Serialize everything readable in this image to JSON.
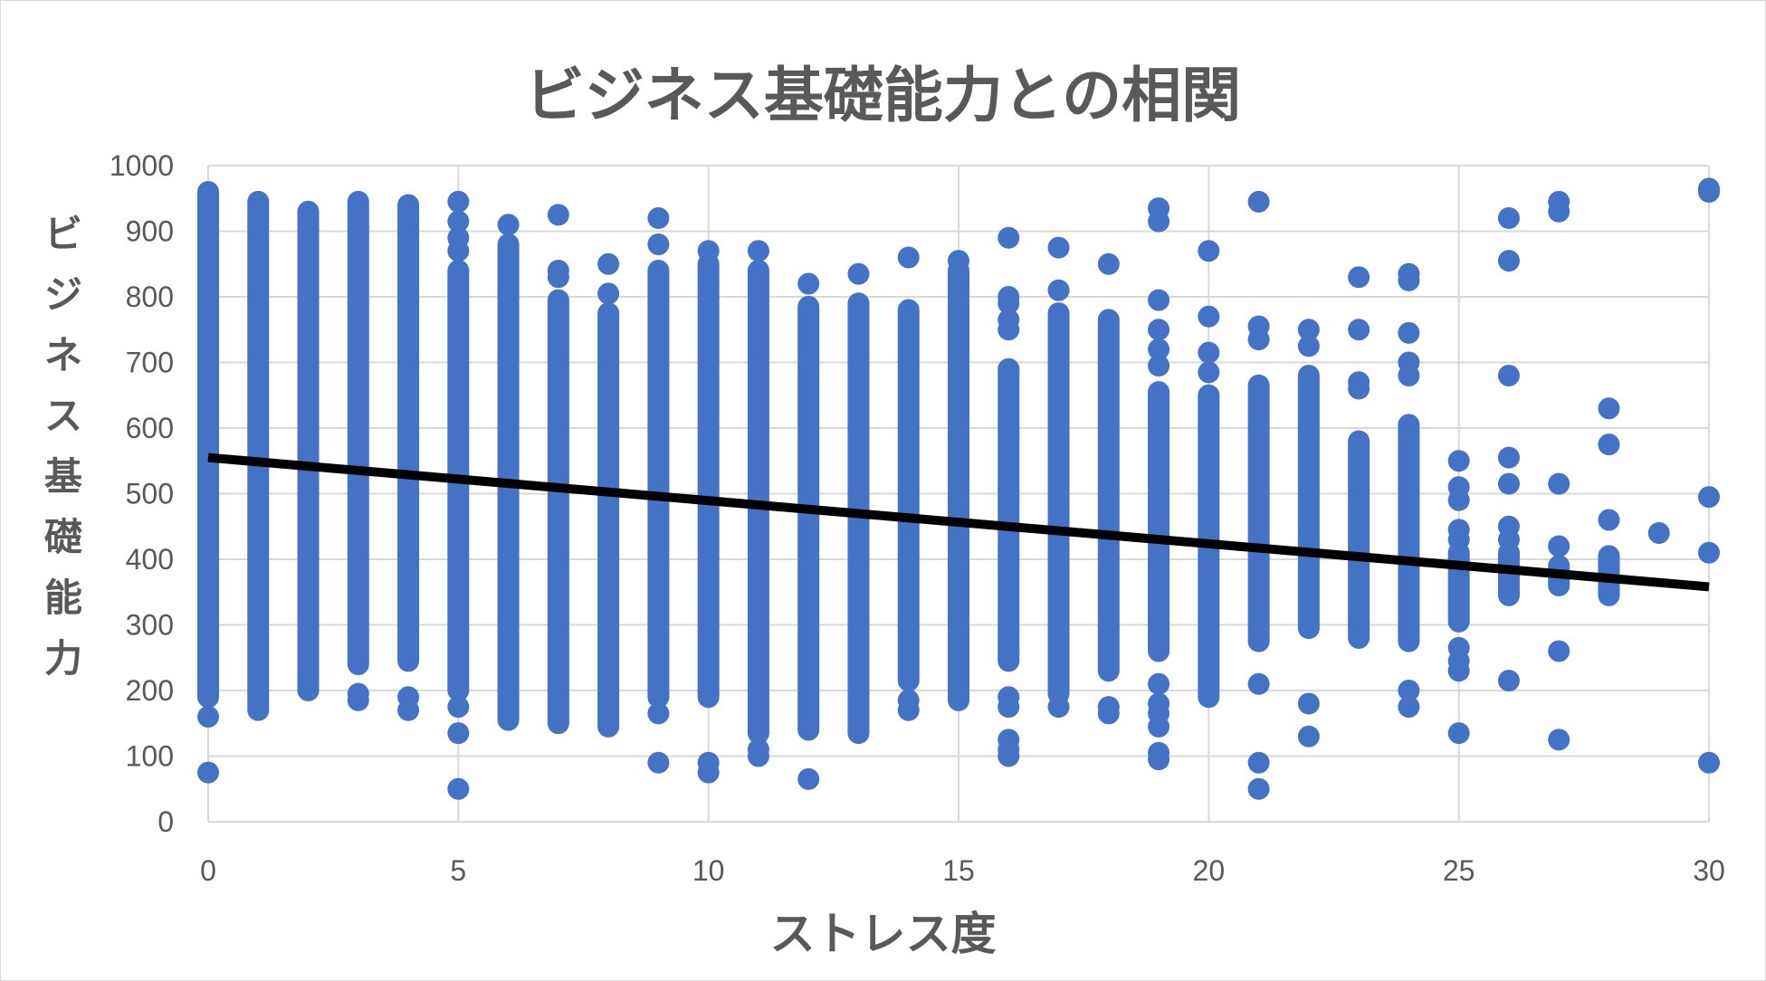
{
  "chart_data": {
    "type": "scatter",
    "title": "ビジネス基礎能力との相関",
    "xlabel": "ストレス度",
    "ylabel": "ビジネス基礎能力",
    "xlim": [
      0,
      30
    ],
    "ylim": [
      0,
      1000
    ],
    "x_ticks": [
      "0",
      "5",
      "10",
      "15",
      "20",
      "25",
      "30"
    ],
    "y_ticks": [
      "0",
      "100",
      "200",
      "300",
      "400",
      "500",
      "600",
      "700",
      "800",
      "900",
      "1000"
    ],
    "grid": true,
    "legend": "none",
    "colors": {
      "points": "#4472c4",
      "trendline": "#000000",
      "grid": "#d9d9d9",
      "text": "#595959"
    },
    "series": [
      {
        "columns": [
          {
            "x": 0,
            "range": [
              190,
              960
            ],
            "outliers": [
              160,
              75
            ]
          },
          {
            "x": 1,
            "range": [
              170,
              945
            ],
            "outliers": []
          },
          {
            "x": 2,
            "range": [
              200,
              930
            ],
            "outliers": []
          },
          {
            "x": 3,
            "range": [
              240,
              945
            ],
            "outliers": [
              195,
              185
            ]
          },
          {
            "x": 4,
            "range": [
              245,
              940
            ],
            "outliers": [
              190,
              170
            ]
          },
          {
            "x": 5,
            "range": [
              200,
              840
            ],
            "outliers": [
              945,
              915,
              890,
              870,
              175,
              135,
              50
            ]
          },
          {
            "x": 6,
            "range": [
              155,
              880
            ],
            "outliers": [
              910
            ]
          },
          {
            "x": 7,
            "range": [
              150,
              795
            ],
            "outliers": [
              925,
              840,
              830
            ]
          },
          {
            "x": 8,
            "range": [
              145,
              775
            ],
            "outliers": [
              850,
              805
            ]
          },
          {
            "x": 9,
            "range": [
              190,
              840
            ],
            "outliers": [
              920,
              880,
              165,
              90
            ]
          },
          {
            "x": 10,
            "range": [
              190,
              850
            ],
            "outliers": [
              870,
              90,
              75
            ]
          },
          {
            "x": 11,
            "range": [
              135,
              840
            ],
            "outliers": [
              870,
              110,
              100
            ]
          },
          {
            "x": 12,
            "range": [
              140,
              785
            ],
            "outliers": [
              820,
              65
            ]
          },
          {
            "x": 13,
            "range": [
              135,
              790
            ],
            "outliers": [
              835
            ]
          },
          {
            "x": 14,
            "range": [
              215,
              780
            ],
            "outliers": [
              860,
              185,
              170
            ]
          },
          {
            "x": 15,
            "range": [
              185,
              840
            ],
            "outliers": [
              855
            ]
          },
          {
            "x": 16,
            "range": [
              245,
              690
            ],
            "outliers": [
              890,
              800,
              790,
              765,
              750,
              190,
              175,
              125,
              110,
              100
            ]
          },
          {
            "x": 17,
            "range": [
              195,
              775
            ],
            "outliers": [
              875,
              810,
              175
            ]
          },
          {
            "x": 18,
            "range": [
              230,
              765
            ],
            "outliers": [
              850,
              175,
              165
            ]
          },
          {
            "x": 19,
            "range": [
              260,
              655
            ],
            "outliers": [
              935,
              915,
              795,
              750,
              720,
              695,
              210,
              180,
              165,
              145,
              105,
              95
            ]
          },
          {
            "x": 20,
            "range": [
              190,
              650
            ],
            "outliers": [
              870,
              770,
              715,
              685
            ]
          },
          {
            "x": 21,
            "range": [
              275,
              665
            ],
            "outliers": [
              945,
              755,
              735,
              210,
              90,
              50
            ]
          },
          {
            "x": 22,
            "range": [
              295,
              680
            ],
            "outliers": [
              750,
              725,
              180,
              130
            ]
          },
          {
            "x": 23,
            "range": [
              280,
              580
            ],
            "outliers": [
              830,
              750,
              670,
              660
            ]
          },
          {
            "x": 24,
            "range": [
              275,
              605
            ],
            "outliers": [
              835,
              825,
              745,
              700,
              680,
              200,
              175
            ]
          },
          {
            "x": 25,
            "range": [
              305,
              410
            ],
            "outliers": [
              550,
              510,
              490,
              445,
              430,
              265,
              245,
              230,
              135
            ]
          },
          {
            "x": 26,
            "range": [
              345,
              410
            ],
            "outliers": [
              920,
              855,
              680,
              555,
              515,
              450,
              430,
              215
            ]
          },
          {
            "x": 27,
            "range": [
              360,
              390
            ],
            "outliers": [
              945,
              930,
              515,
              420,
              260,
              125
            ]
          },
          {
            "x": 28,
            "range": [
              345,
              405
            ],
            "outliers": [
              630,
              575,
              460
            ]
          },
          {
            "x": 29,
            "range": [
              440,
              440
            ],
            "outliers": []
          },
          {
            "x": 30,
            "range": [
              410,
              410
            ],
            "outliers": [
              965,
              960,
              495,
              90
            ]
          }
        ]
      }
    ],
    "trendline": {
      "type": "linear",
      "points": [
        [
          0,
          555
        ],
        [
          30,
          358
        ]
      ]
    }
  }
}
